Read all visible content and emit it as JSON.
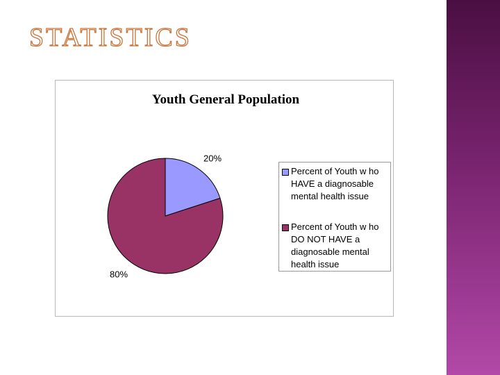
{
  "slide": {
    "title": "STATISTICS"
  },
  "chart_data": {
    "type": "pie",
    "title": "Youth General Population",
    "categories": [
      "Percent of Youth w ho HAVE a diagnosable mental health issue",
      "Percent of Youth w ho DO NOT HAVE a diagnosable mental health issue"
    ],
    "values": [
      20,
      80
    ],
    "value_labels": [
      "20%",
      "80%"
    ],
    "colors": [
      "#9999ff",
      "#993366"
    ],
    "legend": "right"
  }
}
